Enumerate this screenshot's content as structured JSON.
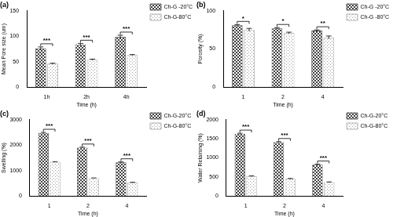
{
  "chart_data": [
    {
      "type": "bar",
      "title": "(a)",
      "x_label": "Time (h)",
      "y_label": "Mean Pore size (um)",
      "categories": [
        "1h",
        "2h",
        "4h"
      ],
      "series": [
        {
          "name": "Ch-G -20°C",
          "color": "#404040",
          "values": [
            76,
            84,
            99
          ],
          "errors": [
            3,
            2,
            3
          ]
        },
        {
          "name": "Ch-G-80°C",
          "color": "#9e9e9e",
          "values": [
            46,
            54,
            63
          ],
          "errors": [
            1,
            1,
            1
          ]
        }
      ],
      "annotations": [
        "***",
        "***",
        "***"
      ],
      "ylim": [
        0,
        150
      ],
      "yticks": [
        0,
        50,
        100,
        150
      ],
      "grid": false,
      "legend": "right"
    },
    {
      "type": "bar",
      "title": "(b)",
      "x_label": "Time (h)",
      "y_label": "Porosity (%)",
      "categories": [
        "1",
        "2",
        "4"
      ],
      "series": [
        {
          "name": "Ch-G -20°C",
          "color": "#404040",
          "values": [
            81,
            77,
            74
          ],
          "errors": [
            1,
            1,
            1
          ]
        },
        {
          "name": "Ch-G -80°C",
          "color": "#9e9e9e",
          "values": [
            75,
            71,
            65
          ],
          "errors": [
            2,
            1,
            2
          ]
        }
      ],
      "annotations": [
        "*",
        "*",
        "**"
      ],
      "ylim": [
        0,
        100
      ],
      "yticks": [
        0,
        50,
        100
      ],
      "grid": false,
      "legend": "right"
    },
    {
      "type": "bar",
      "title": "(c)",
      "x_label": "Time (h)",
      "y_label": "Swelling (%)",
      "categories": [
        "1",
        "2",
        "4"
      ],
      "series": [
        {
          "name": "Ch-G-20°C",
          "color": "#404040",
          "values": [
            2480,
            1900,
            1320
          ],
          "errors": [
            20,
            20,
            20
          ]
        },
        {
          "name": "Ch-G-80°C",
          "color": "#9e9e9e",
          "values": [
            1340,
            700,
            530
          ],
          "errors": [
            10,
            10,
            10
          ]
        }
      ],
      "annotations": [
        "***",
        "***",
        "***"
      ],
      "ylim": [
        0,
        3000
      ],
      "yticks": [
        0,
        1000,
        2000,
        3000
      ],
      "grid": false,
      "legend": "right"
    },
    {
      "type": "bar",
      "title": "(d)",
      "x_label": "Time (h)",
      "y_label": "Water Retaining (%)",
      "categories": [
        "1",
        "2",
        "4"
      ],
      "series": [
        {
          "name": "Ch-G-20°C",
          "color": "#404040",
          "values": [
            1630,
            1410,
            820
          ],
          "errors": [
            15,
            15,
            15
          ]
        },
        {
          "name": "Ch-G-80°C",
          "color": "#9e9e9e",
          "values": [
            520,
            450,
            360
          ],
          "errors": [
            10,
            10,
            10
          ]
        }
      ],
      "annotations": [
        "***",
        "***",
        "***"
      ],
      "ylim": [
        0,
        2000
      ],
      "yticks": [
        0,
        500,
        1000,
        1500,
        2000
      ],
      "grid": false,
      "legend": "right"
    }
  ]
}
